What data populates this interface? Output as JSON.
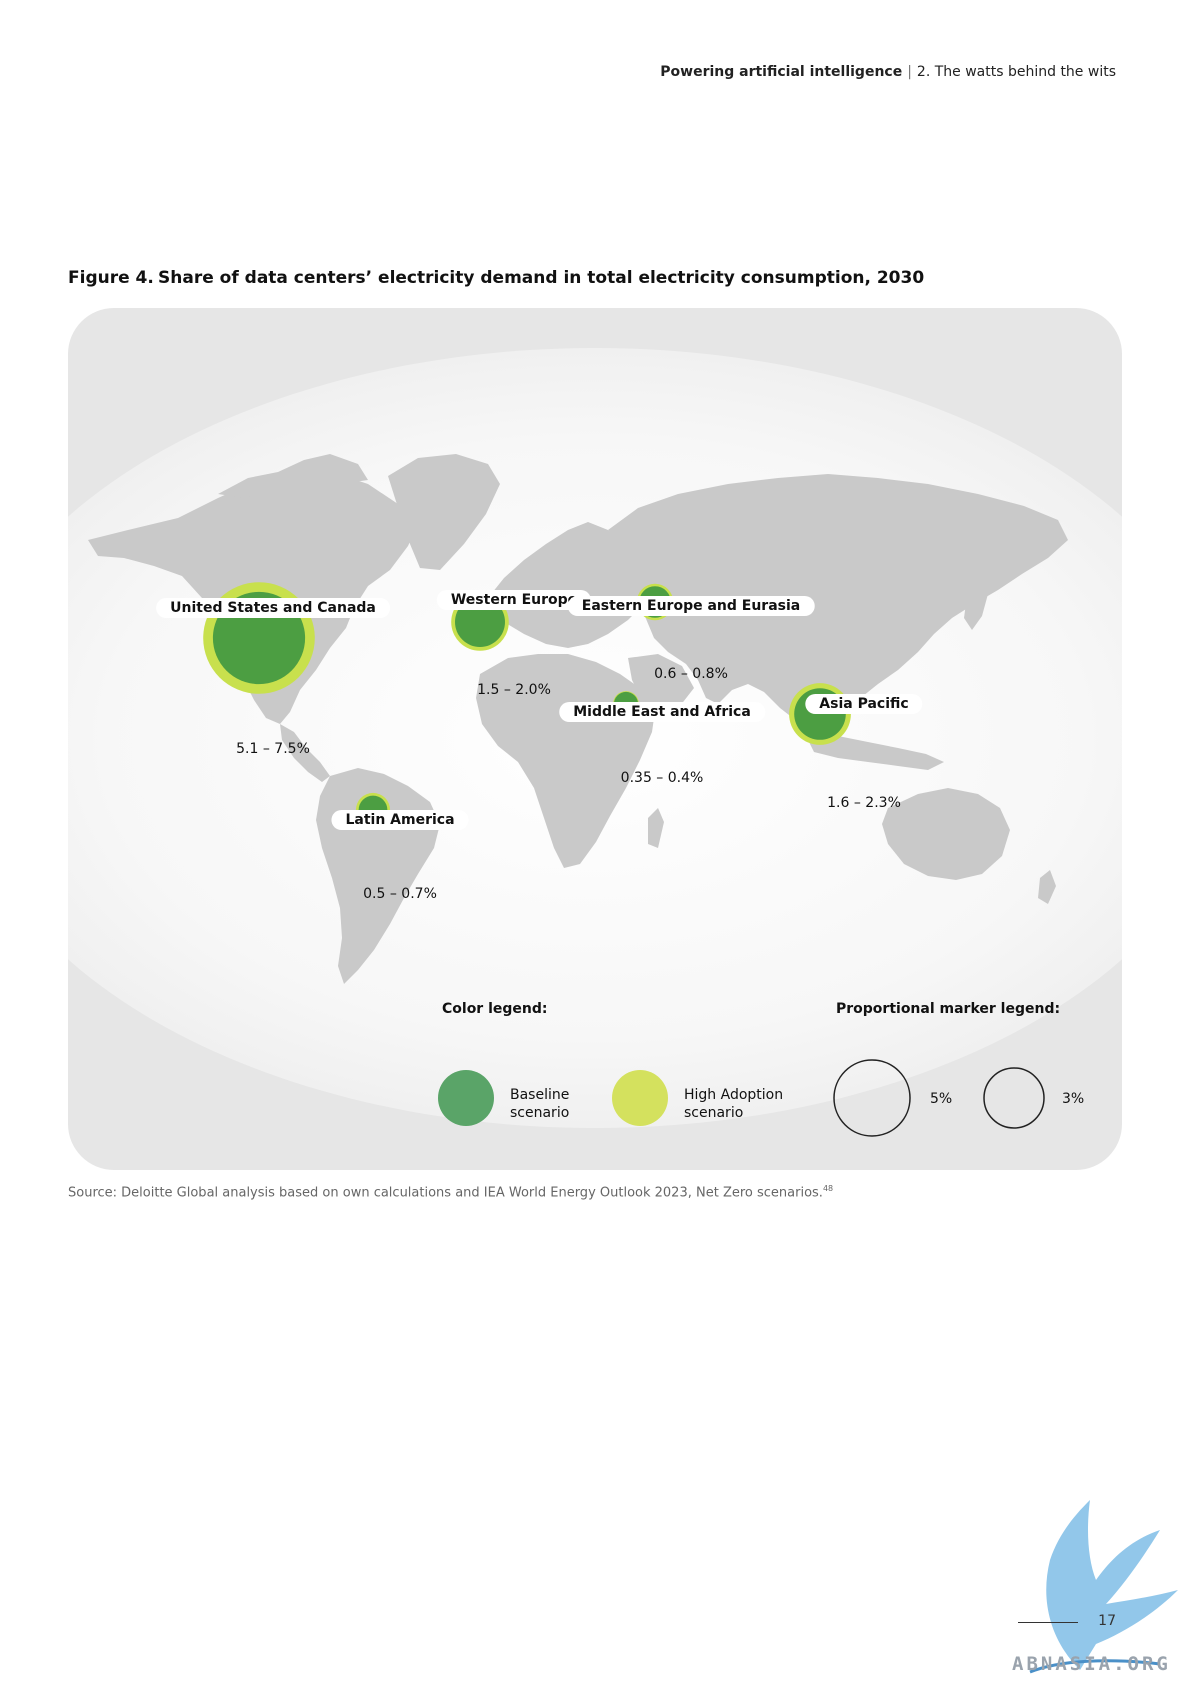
{
  "header": {
    "report_title": "Powering artificial intelligence",
    "separator": "|",
    "section": "2. The watts behind the wits"
  },
  "figure": {
    "number": "Figure 4.",
    "title": "Share of data centers’ electricity demand in total electricity consumption, 2030"
  },
  "regions": [
    {
      "name": "United States and Canada",
      "range": "5.1 – 7.5%",
      "baseline_pct": 5.1,
      "high_pct": 7.5
    },
    {
      "name": "Western Europe",
      "range": "1.5 – 2.0%",
      "baseline_pct": 1.5,
      "high_pct": 2.0
    },
    {
      "name": "Eastern Europe and Eurasia",
      "range": "0.6 – 0.8%",
      "baseline_pct": 0.6,
      "high_pct": 0.8
    },
    {
      "name": "Middle East and Africa",
      "range": "0.35 – 0.4%",
      "baseline_pct": 0.35,
      "high_pct": 0.4
    },
    {
      "name": "Asia Pacific",
      "range": "1.6 – 2.3%",
      "baseline_pct": 1.6,
      "high_pct": 2.3
    },
    {
      "name": "Latin America",
      "range": "0.5 – 0.7%",
      "baseline_pct": 0.5,
      "high_pct": 0.7
    }
  ],
  "legend": {
    "color_title": "Color legend:",
    "baseline_line1": "Baseline",
    "baseline_line2": "scenario",
    "high_line1": "High Adoption",
    "high_line2": "scenario",
    "marker_title": "Proportional marker legend:",
    "marker_large": "5%",
    "marker_small": "3%"
  },
  "colors": {
    "baseline": "#4c9e42",
    "high_adoption": "#c8e04d",
    "baseline_legend": "#5aa468",
    "high_legend": "#d4e15e",
    "land": "#c9c9c9"
  },
  "source": {
    "text": "Source: Deloitte Global analysis based on own calculations and IEA World Energy Outlook 2023, Net Zero scenarios.",
    "footnote": "48"
  },
  "page_number": "17",
  "watermark": "ABNASIA.ORG"
}
